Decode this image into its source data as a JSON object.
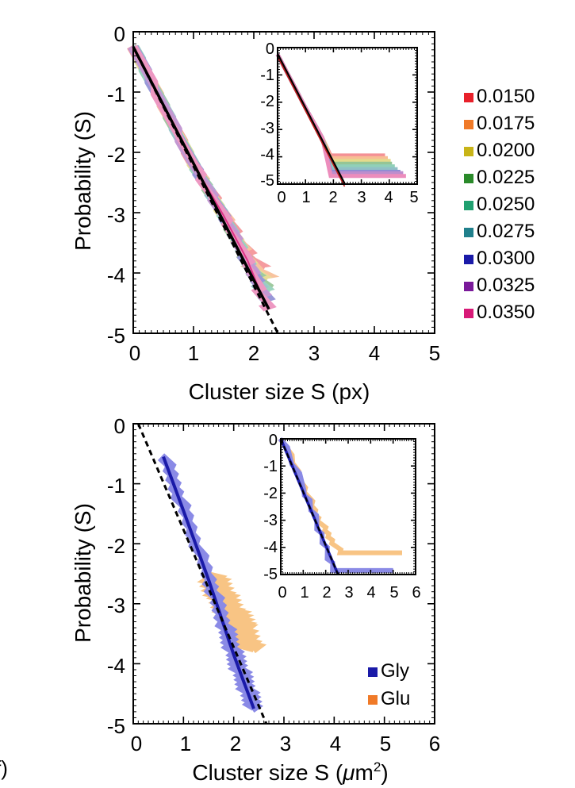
{
  "chart_data": [
    {
      "type": "line",
      "panel": "top",
      "xlabel": "Cluster size S (px)",
      "ylabel": "Probability (S)",
      "xlim": [
        0,
        5
      ],
      "ylim": [
        -5,
        0
      ],
      "xticks": [
        "0",
        "1",
        "2",
        "3",
        "4",
        "5"
      ],
      "yticks": [
        "0",
        "-1",
        "-2",
        "-3",
        "-4",
        "-5"
      ],
      "legend_position": "right",
      "series": [
        {
          "name": "0.0150",
          "color": "#e8202a",
          "x": [
            0,
            1.0,
            1.5,
            1.8,
            2.0,
            2.15
          ],
          "y": [
            -0.25,
            -2.2,
            -3.0,
            -3.5,
            -3.8,
            -3.95
          ]
        },
        {
          "name": "0.0175",
          "color": "#f07a28",
          "x": [
            0,
            1.0,
            1.5,
            1.8,
            2.0,
            2.2
          ],
          "y": [
            -0.25,
            -2.2,
            -3.0,
            -3.55,
            -3.9,
            -4.05
          ]
        },
        {
          "name": "0.0200",
          "color": "#c8b418",
          "x": [
            0,
            1.0,
            1.5,
            1.8,
            2.0,
            2.2
          ],
          "y": [
            -0.25,
            -2.2,
            -3.05,
            -3.6,
            -3.95,
            -4.15
          ]
        },
        {
          "name": "0.0225",
          "color": "#2a8a2a",
          "x": [
            0,
            1.0,
            1.5,
            1.8,
            2.0,
            2.25
          ],
          "y": [
            -0.25,
            -2.2,
            -3.05,
            -3.65,
            -4.0,
            -4.25
          ]
        },
        {
          "name": "0.0250",
          "color": "#20a070",
          "x": [
            0,
            1.0,
            1.5,
            1.85,
            2.05,
            2.25
          ],
          "y": [
            -0.25,
            -2.2,
            -3.05,
            -3.7,
            -4.1,
            -4.35
          ]
        },
        {
          "name": "0.0275",
          "color": "#20808c",
          "x": [
            0,
            1.0,
            1.5,
            1.85,
            2.05,
            2.25
          ],
          "y": [
            -0.25,
            -2.2,
            -3.05,
            -3.7,
            -4.15,
            -4.45
          ]
        },
        {
          "name": "0.0300",
          "color": "#1a1aa8",
          "x": [
            0,
            1.0,
            1.5,
            1.85,
            2.1,
            2.25
          ],
          "y": [
            -0.25,
            -2.2,
            -3.05,
            -3.75,
            -4.2,
            -4.5
          ]
        },
        {
          "name": "0.0325",
          "color": "#7a1a9a",
          "x": [
            0,
            1.0,
            1.5,
            1.9,
            2.1,
            2.25
          ],
          "y": [
            -0.25,
            -2.2,
            -3.05,
            -3.8,
            -4.25,
            -4.55
          ]
        },
        {
          "name": "0.0350",
          "color": "#d81a78",
          "x": [
            0,
            1.0,
            1.5,
            1.9,
            2.1,
            2.25
          ],
          "y": [
            -0.25,
            -2.2,
            -3.05,
            -3.8,
            -4.3,
            -4.6
          ]
        }
      ],
      "fit_line": {
        "color": "#000000",
        "x": [
          0,
          2.25
        ],
        "y": [
          -0.25,
          -4.6
        ]
      },
      "dashed_line": {
        "color": "#000000",
        "x": [
          0,
          2.4
        ],
        "y": [
          -0.25,
          -5.0
        ]
      },
      "inset": {
        "xlim": [
          0,
          5
        ],
        "ylim": [
          -5,
          0
        ],
        "xticks": [
          "0",
          "1",
          "2",
          "3",
          "4",
          "5"
        ],
        "yticks": [
          "0",
          "-1",
          "-2",
          "-3",
          "-4",
          "-5"
        ],
        "plateaus": [
          {
            "name": "0.0150",
            "y": -3.95,
            "x_end": 3.85
          },
          {
            "name": "0.0175",
            "y": -4.05,
            "x_end": 3.95
          },
          {
            "name": "0.0200",
            "y": -4.15,
            "x_end": 4.05
          },
          {
            "name": "0.0225",
            "y": -4.25,
            "x_end": 4.1
          },
          {
            "name": "0.0250",
            "y": -4.35,
            "x_end": 4.2
          },
          {
            "name": "0.0275",
            "y": -4.45,
            "x_end": 4.3
          },
          {
            "name": "0.0300",
            "y": -4.55,
            "x_end": 4.4
          },
          {
            "name": "0.0325",
            "y": -4.6,
            "x_end": 4.5
          },
          {
            "name": "0.0350",
            "y": -4.7,
            "x_end": 4.6
          }
        ],
        "fit_line": {
          "x": [
            0,
            2.4
          ],
          "y": [
            -0.25,
            -5.0
          ]
        }
      }
    },
    {
      "type": "line",
      "panel": "bottom",
      "xlabel": "Cluster size S (μm²)",
      "xlabel_base": "Cluster size S (",
      "xlabel_mu": "μ",
      "xlabel_unit": "m",
      "xlabel_sup": "2",
      "xlabel_close": ")",
      "ylabel": "Probability (S)",
      "xlim": [
        0,
        6
      ],
      "ylim": [
        -5,
        0
      ],
      "xticks": [
        "0",
        "1",
        "2",
        "3",
        "4",
        "5",
        "6"
      ],
      "yticks": [
        "0",
        "-1",
        "-2",
        "-3",
        "-4",
        "-5"
      ],
      "legend_position": "bottom-right",
      "series": [
        {
          "name": "Gly",
          "color": "#1a1aa8",
          "band_color": "#8a8ae6",
          "x": [
            0.6,
            1.0,
            1.5,
            1.8,
            2.0,
            2.2,
            2.4
          ],
          "y": [
            -0.55,
            -1.45,
            -2.6,
            -3.35,
            -3.85,
            -4.3,
            -4.75
          ]
        },
        {
          "name": "Glu",
          "color": "#f07a28",
          "band_color": "#f8c484",
          "x": [
            1.5,
            1.7,
            1.9,
            2.1,
            2.3
          ],
          "y": [
            -2.55,
            -2.85,
            -3.15,
            -3.4,
            -3.75
          ]
        }
      ],
      "dashed_line": {
        "color": "#000000",
        "x": [
          0.1,
          2.65
        ],
        "y": [
          0.0,
          -5.0
        ]
      },
      "inset": {
        "xlim": [
          0,
          6
        ],
        "ylim": [
          -5,
          0
        ],
        "xticks": [
          "0",
          "1",
          "2",
          "3",
          "4",
          "5",
          "6"
        ],
        "yticks": [
          "0",
          "-1",
          "-2",
          "-3",
          "-4",
          "-5"
        ],
        "plateaus": [
          {
            "name": "Glu",
            "y": -4.2,
            "x_end": 5.4
          },
          {
            "name": "Gly",
            "y": -4.85,
            "x_end": 5.0
          }
        ],
        "fit_line": {
          "x": [
            0,
            2.55
          ],
          "y": [
            0.0,
            -5.0
          ]
        }
      }
    }
  ],
  "corner_label": "f)"
}
